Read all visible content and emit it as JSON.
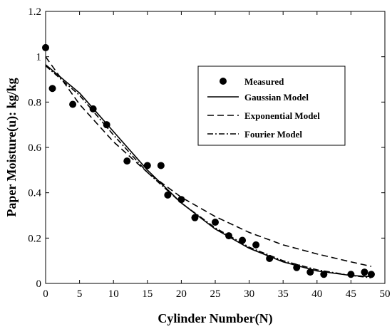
{
  "chart_data": {
    "type": "scatter",
    "title": "",
    "xlabel": "Cylinder Number(N)",
    "ylabel": "Paper Moisture(u): kg/kg",
    "xlim": [
      0,
      50
    ],
    "ylim": [
      0,
      1.2
    ],
    "x_ticks": [
      0,
      5,
      10,
      15,
      20,
      25,
      30,
      35,
      40,
      45,
      50
    ],
    "y_ticks": [
      0,
      0.2,
      0.4,
      0.6,
      0.8,
      1.0,
      1.2
    ],
    "x_tick_labels": [
      "0",
      "5",
      "10",
      "15",
      "20",
      "25",
      "30",
      "35",
      "40",
      "45",
      "50"
    ],
    "y_tick_labels": [
      "0",
      "0.2",
      "0.4",
      "0.6",
      "0.8",
      "1",
      "1.2"
    ],
    "grid": false,
    "legend_position": "top-right",
    "series": [
      {
        "name": "Measured",
        "kind": "scatter",
        "color": "#000000",
        "x": [
          0,
          1,
          4,
          7,
          9,
          12,
          15,
          17,
          18,
          20,
          22,
          25,
          27,
          29,
          31,
          33,
          37,
          39,
          41,
          45,
          47,
          48
        ],
        "y": [
          1.04,
          0.86,
          0.79,
          0.77,
          0.7,
          0.54,
          0.52,
          0.52,
          0.39,
          0.37,
          0.29,
          0.27,
          0.21,
          0.19,
          0.17,
          0.11,
          0.07,
          0.05,
          0.04,
          0.04,
          0.05,
          0.04
        ]
      },
      {
        "name": "Gaussian Model",
        "kind": "line",
        "style": "solid",
        "color": "#000000",
        "x": [
          0,
          5,
          10,
          15,
          20,
          25,
          30,
          35,
          40,
          45,
          48
        ],
        "y": [
          0.965,
          0.84,
          0.67,
          0.5,
          0.355,
          0.24,
          0.155,
          0.095,
          0.055,
          0.035,
          0.03
        ]
      },
      {
        "name": "Exponential Model",
        "kind": "line",
        "style": "dashed",
        "color": "#000000",
        "x": [
          0,
          5,
          10,
          15,
          20,
          25,
          30,
          35,
          40,
          45,
          48
        ],
        "y": [
          1.0,
          0.79,
          0.625,
          0.49,
          0.38,
          0.295,
          0.225,
          0.17,
          0.13,
          0.095,
          0.075
        ]
      },
      {
        "name": "Fourier Model",
        "kind": "line",
        "style": "dashdot",
        "color": "#000000",
        "x": [
          0,
          5,
          10,
          15,
          20,
          25,
          30,
          35,
          40,
          45,
          48
        ],
        "y": [
          0.96,
          0.83,
          0.655,
          0.49,
          0.355,
          0.245,
          0.16,
          0.1,
          0.06,
          0.035,
          0.025
        ]
      }
    ]
  }
}
